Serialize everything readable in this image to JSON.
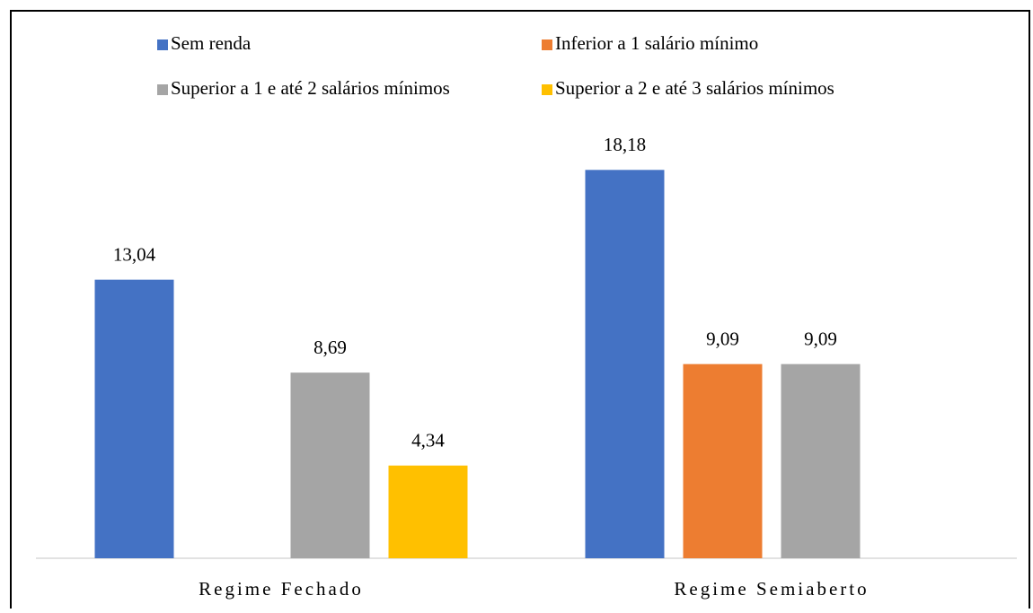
{
  "chart_data": {
    "type": "bar",
    "categories": [
      "Regime Fechado",
      "Regime Semiaberto"
    ],
    "series": [
      {
        "name": "Sem renda",
        "color": "#4472c4",
        "values": [
          13.04,
          18.18
        ],
        "value_labels": [
          "13,04",
          "18,18"
        ]
      },
      {
        "name": "Inferior a 1 salário mínimo",
        "color": "#ed7d31",
        "values": [
          null,
          9.09
        ],
        "value_labels": [
          null,
          "9,09"
        ]
      },
      {
        "name": "Superior a 1 e até 2 salários mínimos",
        "color": "#a5a5a5",
        "values": [
          8.69,
          9.09
        ],
        "value_labels": [
          "8,69",
          "9,09"
        ]
      },
      {
        "name": "Superior a 2 e até 3 salários mínimos",
        "color": "#ffc000",
        "values": [
          4.34,
          null
        ],
        "value_labels": [
          "4,34",
          null
        ]
      }
    ],
    "ylim": [
      0,
      20
    ],
    "grid": false,
    "legend": "top"
  }
}
